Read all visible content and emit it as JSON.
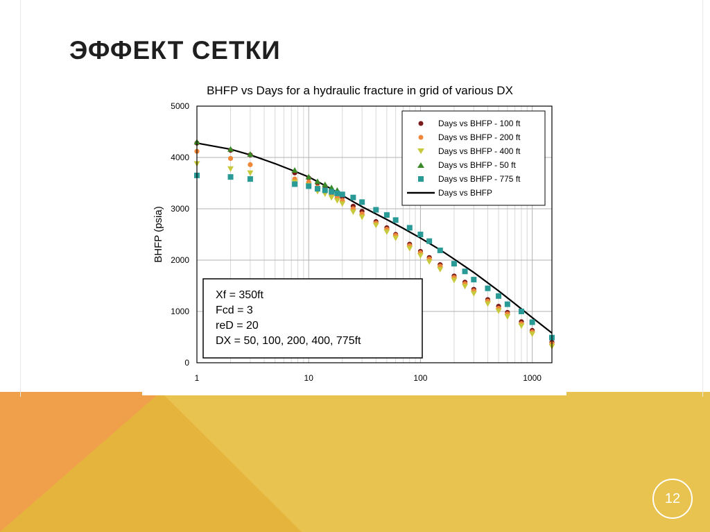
{
  "slide": {
    "title": "ЭФФЕКТ СЕТКИ",
    "page_number": "12",
    "colors": {
      "orange": "#f0a04b",
      "gold": "#e8c34f",
      "gold_dark": "#e4b43c",
      "title": "#1f1f1f"
    }
  },
  "chart_data": {
    "type": "scatter",
    "title": "BHFP vs Days for a hydraulic fracture in grid of various DX",
    "ylabel": "BHFP (psia)",
    "xlabel": "",
    "x_scale": "log",
    "xlim": [
      1,
      1500
    ],
    "ylim": [
      0,
      5000
    ],
    "x_ticks": [
      1,
      10,
      100,
      1000
    ],
    "x_tick_labels": [
      "1",
      "10",
      "100",
      "1000"
    ],
    "y_ticks": [
      0,
      1000,
      2000,
      3000,
      4000,
      5000
    ],
    "y_tick_labels": [
      "0",
      "1000",
      "2000",
      "3000",
      "4000",
      "5000"
    ],
    "grid": true,
    "legend_position": "top-right",
    "series": [
      {
        "name": "Days vs BHFP - 100 ft",
        "marker": "circle",
        "color": "#7a1a1a",
        "x": [
          1,
          2,
          3,
          7.5,
          10,
          12,
          14,
          16,
          18,
          20,
          25,
          30,
          40,
          50,
          60,
          80,
          100,
          120,
          150,
          200,
          250,
          300,
          400,
          500,
          600,
          800,
          1000,
          1500
        ],
        "y": [
          4280,
          4140,
          4050,
          3700,
          3600,
          3500,
          3440,
          3350,
          3290,
          3230,
          3050,
          2950,
          2750,
          2630,
          2500,
          2310,
          2170,
          2050,
          1910,
          1690,
          1570,
          1430,
          1230,
          1100,
          980,
          800,
          630,
          400
        ]
      },
      {
        "name": "Days vs BHFP - 200 ft",
        "marker": "circle",
        "color": "#f0883c",
        "x": [
          1,
          2,
          3,
          7.5,
          10,
          12,
          14,
          16,
          18,
          20,
          25,
          30,
          40,
          50,
          60,
          80,
          100,
          120,
          150,
          200,
          250,
          300,
          400,
          500,
          600,
          800,
          1000,
          1500
        ],
        "y": [
          4120,
          3980,
          3860,
          3580,
          3520,
          3420,
          3350,
          3280,
          3220,
          3160,
          3000,
          2900,
          2720,
          2600,
          2480,
          2280,
          2140,
          2020,
          1880,
          1660,
          1540,
          1400,
          1200,
          1060,
          950,
          760,
          600,
          370
        ]
      },
      {
        "name": "Days vs BHFP - 400 ft",
        "marker": "triangle-down",
        "color": "#c8c83c",
        "x": [
          1,
          2,
          3,
          7.5,
          10,
          12,
          14,
          16,
          18,
          20,
          25,
          30,
          40,
          50,
          60,
          80,
          100,
          120,
          150,
          200,
          250,
          300,
          400,
          500,
          600,
          800,
          1000,
          1500
        ],
        "y": [
          3880,
          3780,
          3700,
          3520,
          3460,
          3340,
          3290,
          3220,
          3160,
          3100,
          2940,
          2840,
          2680,
          2550,
          2430,
          2230,
          2090,
          1970,
          1820,
          1610,
          1490,
          1350,
          1150,
          1010,
          900,
          720,
          560,
          320
        ]
      },
      {
        "name": "Days vs BHFP - 50 ft",
        "marker": "triangle-up",
        "color": "#3a8a2a",
        "x": [
          1,
          2,
          3,
          7.5,
          10,
          12,
          14,
          16,
          18
        ],
        "y": [
          4300,
          4160,
          4060,
          3750,
          3620,
          3530,
          3470,
          3410,
          3360
        ]
      },
      {
        "name": "Days vs BHFP - 775 ft",
        "marker": "square",
        "color": "#2a9a96",
        "x": [
          1,
          2,
          3,
          7.5,
          10,
          12,
          14,
          16,
          18,
          20,
          25,
          30,
          40,
          50,
          60,
          80,
          100,
          120,
          150,
          200,
          250,
          300,
          400,
          500,
          600,
          800,
          1000,
          1500
        ],
        "y": [
          3650,
          3620,
          3580,
          3480,
          3440,
          3390,
          3360,
          3330,
          3300,
          3280,
          3220,
          3130,
          2980,
          2880,
          2780,
          2630,
          2500,
          2370,
          2190,
          1930,
          1780,
          1620,
          1450,
          1300,
          1140,
          1000,
          790,
          490
        ]
      },
      {
        "name": "Days vs BHFP",
        "marker": "line",
        "color": "#000000",
        "x": [
          1,
          2,
          3,
          5,
          7.5,
          10,
          15,
          20,
          30,
          50,
          70,
          100,
          150,
          200,
          300,
          500,
          700,
          1000,
          1500
        ],
        "y": [
          4280,
          4160,
          4050,
          3880,
          3730,
          3620,
          3420,
          3260,
          3040,
          2790,
          2620,
          2430,
          2200,
          2020,
          1760,
          1400,
          1150,
          880,
          580
        ]
      }
    ],
    "annotation_box": {
      "lines": [
        "Xf = 350ft",
        "Fcd = 3",
        "reD = 20",
        "DX = 50, 100, 200, 400, 775ft"
      ]
    }
  }
}
